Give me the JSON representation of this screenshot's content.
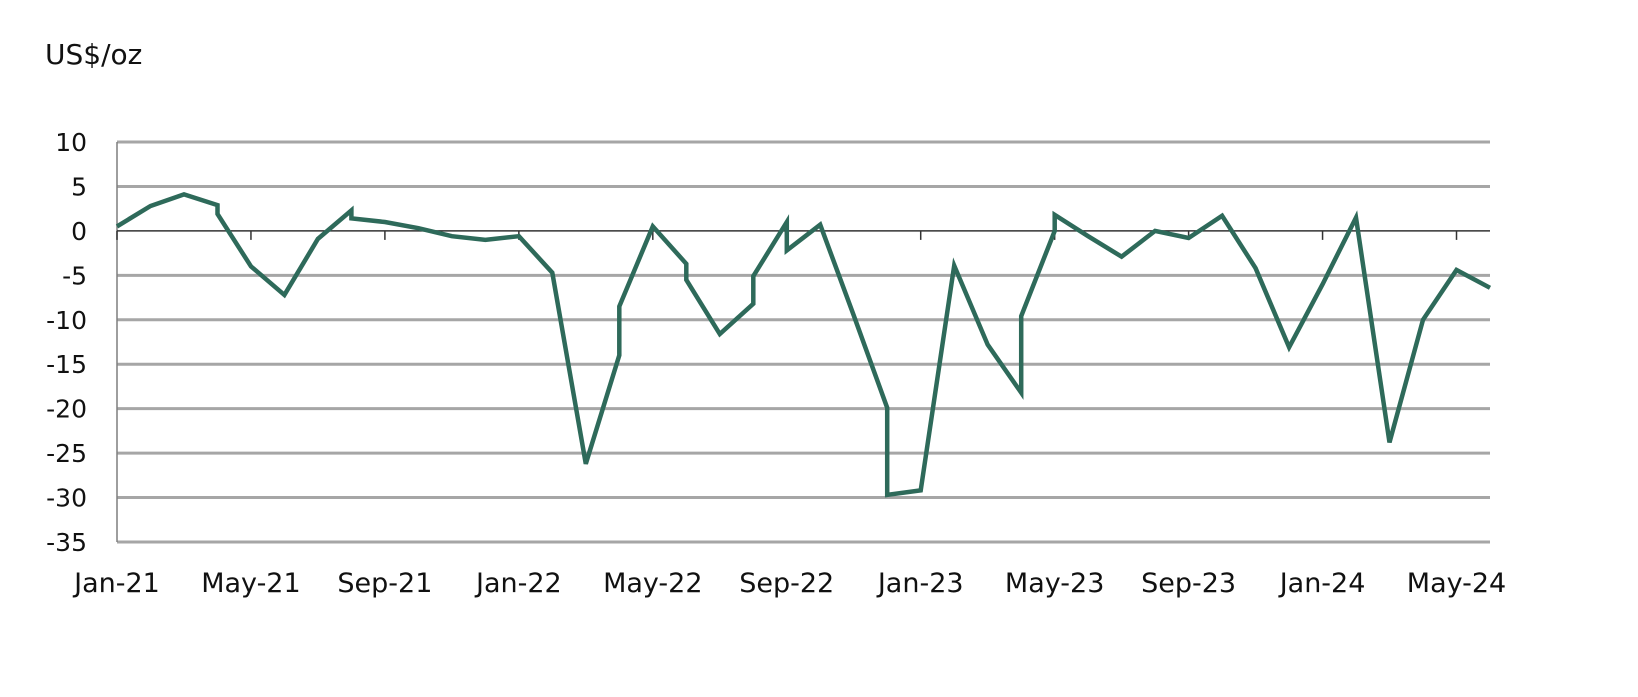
{
  "chart_data": {
    "type": "line",
    "ylabel": "US$/oz",
    "ylim": [
      -35,
      10
    ],
    "yticks": [
      10,
      5,
      0,
      -5,
      -10,
      -15,
      -20,
      -25,
      -30,
      -35
    ],
    "xlim": [
      "2021-01",
      "2024-06"
    ],
    "xtick_labels": [
      "Jan-21",
      "May-21",
      "Sep-21",
      "Jan-22",
      "May-22",
      "Sep-22",
      "Jan-23",
      "May-23",
      "Sep-23",
      "Jan-24",
      "May-24"
    ],
    "xtick_dates": [
      "2021-01",
      "2021-05",
      "2021-09",
      "2022-01",
      "2022-05",
      "2022-09",
      "2023-01",
      "2023-05",
      "2023-09",
      "2024-01",
      "2024-05"
    ],
    "grid": true,
    "series": [
      {
        "color": "#2e6a5a",
        "points": [
          {
            "x": "2021-01",
            "y": 0.5
          },
          {
            "x": "2021-02",
            "y": 2.8
          },
          {
            "x": "2021-03",
            "y": 4.1
          },
          {
            "x": "2021-04",
            "y": 2.9
          },
          {
            "x": "2021-04",
            "y": 1.9
          },
          {
            "x": "2021-05",
            "y": -4.0
          },
          {
            "x": "2021-06",
            "y": -7.2
          },
          {
            "x": "2021-07",
            "y": -0.9
          },
          {
            "x": "2021-08",
            "y": 2.3
          },
          {
            "x": "2021-08",
            "y": 1.4
          },
          {
            "x": "2021-09",
            "y": 1.0
          },
          {
            "x": "2021-10",
            "y": 0.3
          },
          {
            "x": "2021-11",
            "y": -0.6
          },
          {
            "x": "2021-12",
            "y": -1.0
          },
          {
            "x": "2022-01",
            "y": -0.6
          },
          {
            "x": "2022-02",
            "y": -4.7
          },
          {
            "x": "2022-03",
            "y": -26.2
          },
          {
            "x": "2022-04",
            "y": -14.0
          },
          {
            "x": "2022-04",
            "y": -8.5
          },
          {
            "x": "2022-05",
            "y": 0.5
          },
          {
            "x": "2022-06",
            "y": -3.7
          },
          {
            "x": "2022-06",
            "y": -5.5
          },
          {
            "x": "2022-07",
            "y": -11.6
          },
          {
            "x": "2022-08",
            "y": -8.2
          },
          {
            "x": "2022-08",
            "y": -5.1
          },
          {
            "x": "2022-09",
            "y": 1.0
          },
          {
            "x": "2022-09",
            "y": -2.2
          },
          {
            "x": "2022-10",
            "y": 0.7
          },
          {
            "x": "2022-11",
            "y": -9.5
          },
          {
            "x": "2022-12",
            "y": -19.9
          },
          {
            "x": "2022-12",
            "y": -29.7
          },
          {
            "x": "2023-01",
            "y": -29.2
          },
          {
            "x": "2023-02",
            "y": -3.9
          },
          {
            "x": "2023-03",
            "y": -12.8
          },
          {
            "x": "2023-04",
            "y": -18.2
          },
          {
            "x": "2023-04",
            "y": -9.6
          },
          {
            "x": "2023-05",
            "y": 0.0
          },
          {
            "x": "2023-05",
            "y": 1.8
          },
          {
            "x": "2023-06",
            "y": -0.6
          },
          {
            "x": "2023-07",
            "y": -2.9
          },
          {
            "x": "2023-08",
            "y": 0.0
          },
          {
            "x": "2023-09",
            "y": -0.8
          },
          {
            "x": "2023-10",
            "y": 1.7
          },
          {
            "x": "2023-11",
            "y": -4.2
          },
          {
            "x": "2023-12",
            "y": -13.1
          },
          {
            "x": "2024-01",
            "y": -6.0
          },
          {
            "x": "2024-02",
            "y": 1.5
          },
          {
            "x": "2024-03",
            "y": -23.8
          },
          {
            "x": "2024-04",
            "y": -10.0
          },
          {
            "x": "2024-05",
            "y": -4.4
          },
          {
            "x": "2024-06",
            "y": -6.4
          }
        ]
      }
    ]
  }
}
